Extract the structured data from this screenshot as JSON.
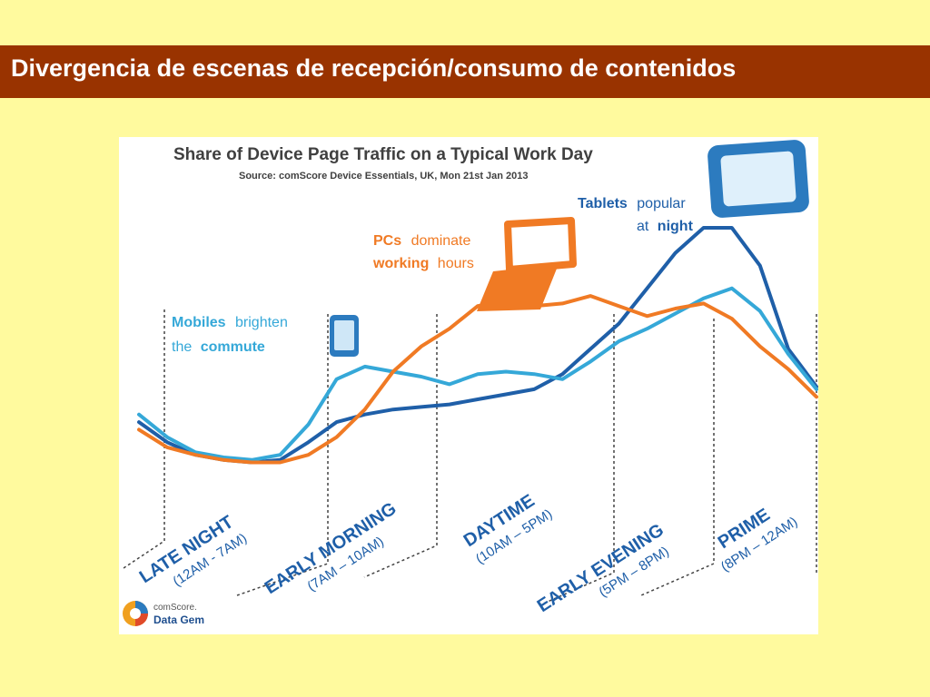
{
  "slide": {
    "title": "Divergencia de escenas de recepción/consumo de contenidos",
    "background": "#fffa9e",
    "title_bar_color": "#993300"
  },
  "chart_data": {
    "type": "line",
    "title": "Share of Device Page Traffic on a Typical Work Day",
    "source": "Source: comScore Device Essentials, UK, Mon 21st Jan 2013",
    "x": [
      0,
      1,
      2,
      3,
      4,
      5,
      6,
      7,
      8,
      9,
      10,
      11,
      12,
      13,
      14,
      15,
      16,
      17,
      18,
      19,
      20,
      21,
      22,
      23,
      24
    ],
    "series": [
      {
        "color": "#1f5fa8",
        "values": [
          23,
          15,
          10,
          8,
          7,
          8,
          15,
          23,
          26,
          28,
          29,
          30,
          32,
          34,
          36,
          42,
          52,
          62,
          76,
          90,
          100,
          100,
          85,
          52,
          37
        ]
      },
      {
        "color": "#35a8d8",
        "values": [
          26,
          17,
          11,
          9,
          8,
          10,
          22,
          40,
          45,
          43,
          41,
          38,
          42,
          43,
          42,
          40,
          47,
          55,
          60,
          66,
          72,
          76,
          67,
          50,
          36
        ]
      },
      {
        "color": "#f07a24",
        "values": [
          20,
          13,
          10,
          8,
          7,
          7,
          10,
          17,
          28,
          43,
          53,
          60,
          69,
          71,
          69,
          70,
          73,
          69,
          65,
          68,
          70,
          64,
          53,
          44,
          33
        ]
      }
    ],
    "ylim": [
      0,
      100
    ],
    "grid": false,
    "legend": "none",
    "annotations": {
      "mobiles": {
        "bold": "Mobiles",
        "normal": "brighten",
        "normal2": "the",
        "bold2": "commute",
        "color": "#35a8d8"
      },
      "pcs": {
        "bold": "PCs",
        "normal": "dominate",
        "bold2": "working",
        "normal2": "hours",
        "color": "#f07a24"
      },
      "tablets": {
        "bold": "Tablets",
        "normal": "popular",
        "normal2": "at",
        "bold2": "night",
        "color": "#1f5fa8"
      }
    },
    "periods": [
      {
        "name": "LATE NIGHT",
        "range": "(12AM - 7AM)"
      },
      {
        "name": "EARLY MORNING",
        "range": "(7AM – 10AM)"
      },
      {
        "name": "DAYTIME",
        "range": "(10AM – 5PM)"
      },
      {
        "name": "EARLY EVENING",
        "range": "(5PM – 8PM)"
      },
      {
        "name": "PRIME",
        "range": "(8PM – 12AM)"
      }
    ]
  },
  "logo": {
    "line1": "comScore.",
    "line2": "Data Gem"
  }
}
